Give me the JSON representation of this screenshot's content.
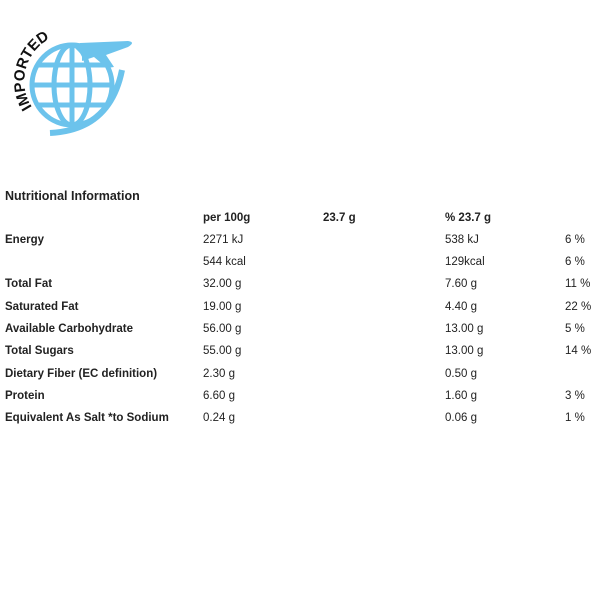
{
  "logo": {
    "text": "IMPORTED"
  },
  "title": "Nutritional Information",
  "table": {
    "header": [
      "per 100g",
      "23.7 g",
      "% 23.7 g"
    ],
    "rows": [
      [
        "Energy",
        "2271 kJ",
        "538 kJ",
        "6 %"
      ],
      [
        null,
        "544 kcal",
        "129kcal",
        "6 %"
      ],
      [
        "Total Fat",
        "32.00 g",
        "7.60 g",
        "11 %"
      ],
      [
        "Saturated Fat",
        "19.00 g",
        "4.40 g",
        "22 %"
      ],
      [
        "Available Carbohydrate",
        "56.00 g",
        "13.00 g",
        "5 %"
      ],
      [
        "Total Sugars",
        "55.00 g",
        "13.00 g",
        "14 %"
      ],
      [
        "Dietary Fiber (EC definition)",
        "2.30 g",
        "0.50 g",
        null
      ],
      [
        "Protein",
        "6.60 g",
        "1.60 g",
        "3 %"
      ],
      [
        "Equivalent As Salt *to Sodium",
        "0.24 g",
        "0.06 g",
        "1 %"
      ]
    ]
  }
}
